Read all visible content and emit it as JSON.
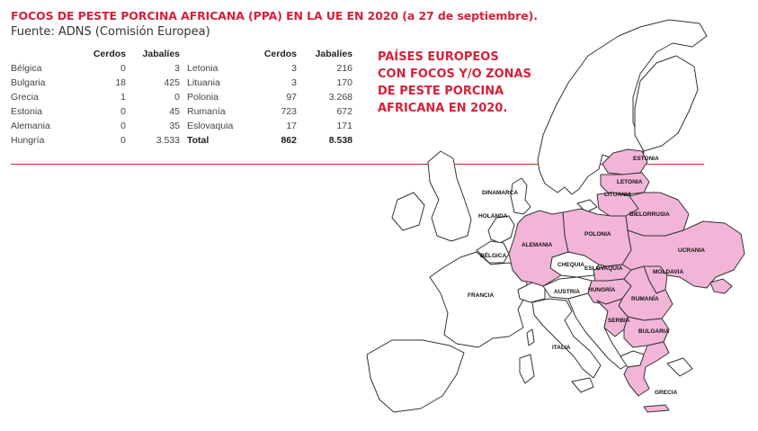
{
  "title": "FOCOS DE PESTE PORCINA AFRICANA (PPA) EN LA UE EN 2020 (a 27 de septiembre).",
  "source": "Fuente: ADNS (Comisión Europea)",
  "table_left": {
    "headers": [
      "",
      "Cerdos",
      "Jabalíes"
    ],
    "rows": [
      [
        "Bélgica",
        "0",
        "3"
      ],
      [
        "Bulgaria",
        "18",
        "425"
      ],
      [
        "Grecia",
        "1",
        "0"
      ],
      [
        "Estonia",
        "0",
        "45"
      ],
      [
        "Alemania",
        "0",
        "35"
      ],
      [
        "Hungría",
        "0",
        "3.533"
      ]
    ]
  },
  "table_right": {
    "headers": [
      "",
      "Cerdos",
      "Jabalíes"
    ],
    "rows": [
      [
        "Letonia",
        "3",
        "216"
      ],
      [
        "Lituania",
        "3",
        "170"
      ],
      [
        "Polonia",
        "97",
        "3.268"
      ],
      [
        "Rumanía",
        "723",
        "672"
      ],
      [
        "Eslovaquia",
        "17",
        "171"
      ]
    ],
    "total": [
      "Total",
      "862",
      "8.538"
    ]
  },
  "legend": {
    "lines": [
      "PAÍSES EUROPEOS",
      "CON FOCOS Y/O ZONAS",
      "DE PESTE PORCINA",
      "AFRICANA EN 2020."
    ]
  },
  "colors": {
    "accent": "#d6213a",
    "affected": "#f2b5d8",
    "border": "#333333"
  },
  "map_labels": {
    "estonia": "ESTONIA",
    "letonia": "LETONIA",
    "lituania": "LITUANIA",
    "dinamarca": "DINAMARCA",
    "bielorrusia": "BIELORRUSIA",
    "holanda": "HOLANDA",
    "polonia": "POLONIA",
    "alemania": "ALEMANIA",
    "ucrania": "UCRANIA",
    "belgica": "BÉLGICA",
    "chequia": "CHEQUIA",
    "eslovaquia": "ESLOVAQUIA",
    "moldavia": "MOLDAVIA",
    "francia": "FRANCIA",
    "austria": "AUSTRIA",
    "hungria": "HUNGRÍA",
    "rumania": "RUMANÍA",
    "serbia": "SERBIA",
    "bulgaria": "BULGARIA",
    "italia": "ITALIA",
    "grecia": "GRECIA"
  }
}
